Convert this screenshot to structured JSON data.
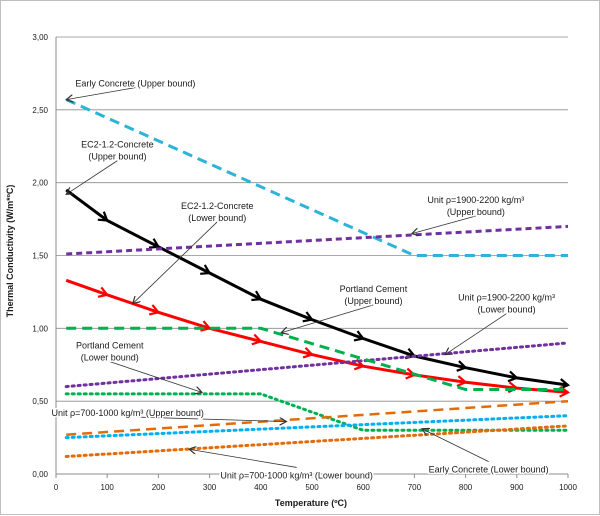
{
  "chart_data": {
    "type": "line",
    "xlabel": "Temperature (ºC)",
    "ylabel": "Thermal Conductivity (W/m*ºC)",
    "xlim": [
      0,
      1000
    ],
    "ylim": [
      0,
      3
    ],
    "x_ticks": [
      "0",
      "100",
      "200",
      "300",
      "400",
      "500",
      "600",
      "700",
      "800",
      "900",
      "1000"
    ],
    "y_ticks": [
      "0,00",
      "0,50",
      "1,00",
      "1,50",
      "2,00",
      "2,50",
      "3,00"
    ],
    "grid": "horizontal",
    "legend": "none",
    "series": [
      {
        "name": "Early Concrete (Upper bound)",
        "color": "#2bb3d9",
        "dash": "10,6",
        "width": 3,
        "marker": "none",
        "x": [
          20,
          700,
          1000
        ],
        "y": [
          2.57,
          1.5,
          1.5
        ]
      },
      {
        "name": "Early Concrete (Lower bound)",
        "color": "#00b050",
        "dash": "2,4",
        "width": 3,
        "marker": "none",
        "x": [
          20,
          400,
          600,
          1000
        ],
        "y": [
          0.55,
          0.55,
          0.3,
          0.3
        ]
      },
      {
        "name": "EC2-1.2-Concrete (Upper bound)",
        "color": "#000000",
        "dash": "",
        "width": 3,
        "marker": "arrow",
        "x": [
          20,
          100,
          200,
          300,
          400,
          500,
          600,
          700,
          800,
          900,
          1000
        ],
        "y": [
          1.95,
          1.74,
          1.56,
          1.38,
          1.2,
          1.06,
          0.93,
          0.81,
          0.73,
          0.66,
          0.61
        ]
      },
      {
        "name": "EC2-1.2-Concrete (Lower bound)",
        "color": "#ff0000",
        "dash": "",
        "width": 3,
        "marker": "arrow",
        "x": [
          20,
          100,
          200,
          300,
          400,
          500,
          600,
          700,
          800,
          900,
          1000
        ],
        "y": [
          1.33,
          1.23,
          1.11,
          1.0,
          0.91,
          0.82,
          0.74,
          0.68,
          0.63,
          0.59,
          0.56
        ]
      },
      {
        "name": "Unit ρ=1900-2200 kg/m³ (Upper bound)",
        "color": "#7030a0",
        "dash": "6,4",
        "width": 3,
        "marker": "none",
        "x": [
          20,
          1000
        ],
        "y": [
          1.51,
          1.7
        ]
      },
      {
        "name": "Unit ρ=1900-2200 kg/m³ (Lower bound)",
        "color": "#7030a0",
        "dash": "2,4",
        "width": 3,
        "marker": "none",
        "x": [
          20,
          1000
        ],
        "y": [
          0.6,
          0.9
        ]
      },
      {
        "name": "Portland Cement (Upper bound)",
        "color": "#00b050",
        "dash": "10,6",
        "width": 3,
        "marker": "none",
        "x": [
          20,
          400,
          800,
          1000
        ],
        "y": [
          1.0,
          1.0,
          0.58,
          0.58
        ]
      },
      {
        "name": "Unit ρ=700-1000 kg/m³ (Upper bound)",
        "color": "#e36c09",
        "dash": "10,6",
        "width": 2.5,
        "marker": "none",
        "x": [
          20,
          1000
        ],
        "y": [
          0.27,
          0.5
        ]
      },
      {
        "name": "Unit ρ=700-1000 kg/m³ (Lower bound)",
        "color": "#e36c09",
        "dash": "2,4",
        "width": 3,
        "marker": "none",
        "x": [
          20,
          1000
        ],
        "y": [
          0.12,
          0.33
        ]
      },
      {
        "name": "Portland Cement (Lower bound)",
        "color": "#00b0f0",
        "dash": "2,4",
        "width": 3,
        "marker": "none",
        "x": [
          20,
          1000
        ],
        "y": [
          0.25,
          0.4
        ]
      }
    ],
    "annotations": [
      {
        "lines": [
          "Early Concrete (Upper bound)"
        ],
        "x": 155,
        "y": 2.68,
        "ax": 20,
        "ay": 2.57
      },
      {
        "lines": [
          "EC2-1.2-Concrete",
          "(Upper bound)"
        ],
        "x": 120,
        "y": 2.22,
        "ax": 20,
        "ay": 1.92
      },
      {
        "lines": [
          "EC2-1.2-Concrete",
          "(Lower bound)"
        ],
        "x": 315,
        "y": 1.8,
        "ax": 150,
        "ay": 1.17
      },
      {
        "lines": [
          "Unit ρ=1900-2200 kg/m³",
          "(Upper bound)"
        ],
        "x": 820,
        "y": 1.84,
        "ax": 695,
        "ay": 1.65
      },
      {
        "lines": [
          "Portland Cement",
          "(Upper bound)"
        ],
        "x": 620,
        "y": 1.23,
        "ax": 440,
        "ay": 0.97
      },
      {
        "lines": [
          "Unit ρ=1900-2200 kg/m³",
          "(Lower bound)"
        ],
        "x": 880,
        "y": 1.17,
        "ax": 760,
        "ay": 0.82
      },
      {
        "lines": [
          "Portland Cement",
          "(Lower bound)"
        ],
        "x": 105,
        "y": 0.84,
        "ax": 285,
        "ay": 0.56
      },
      {
        "lines": [
          "Unit ρ=700-1000 kg/m³ (Upper bound)"
        ],
        "x": 140,
        "y": 0.42,
        "ax": 450,
        "ay": 0.36
      },
      {
        "lines": [
          "Unit ρ=700-1000 kg/m³ (Lower bound)"
        ],
        "x": 470,
        "y": -0.01,
        "ax": 260,
        "ay": 0.17
      },
      {
        "lines": [
          "Early Concrete (Lower bound)"
        ],
        "x": 845,
        "y": 0.03,
        "ax": 715,
        "ay": 0.31
      }
    ]
  }
}
